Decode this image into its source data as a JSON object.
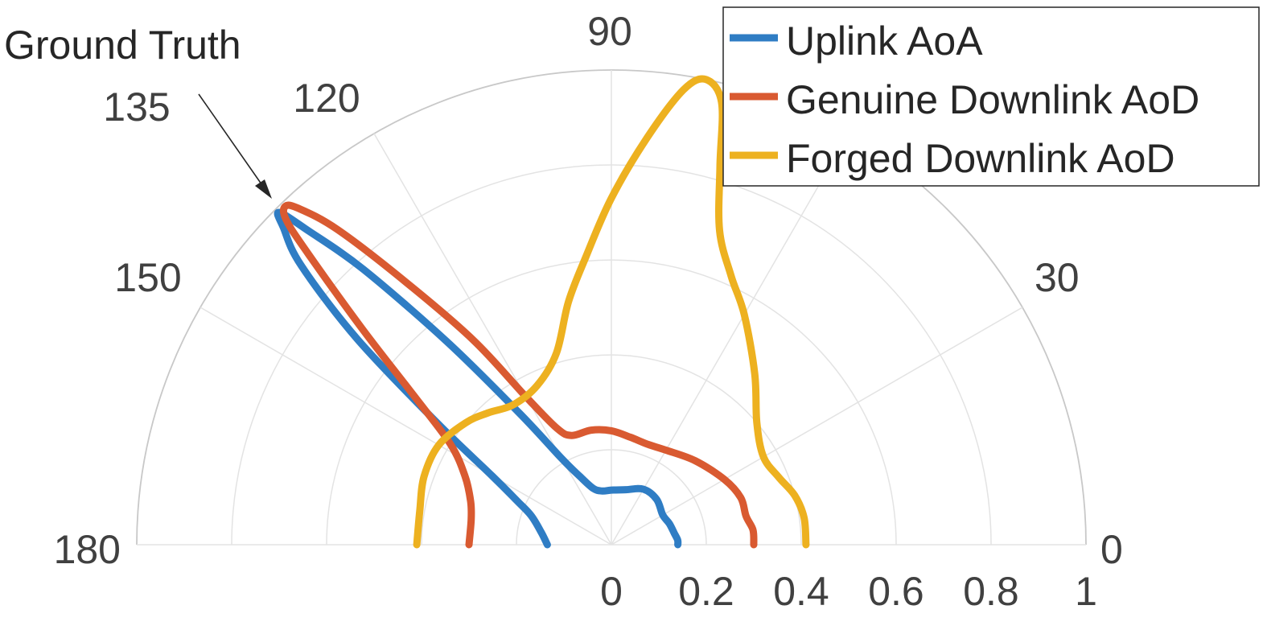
{
  "chart_data": {
    "type": "polar-line",
    "theta_range": [
      0,
      180
    ],
    "r_range": [
      0,
      1
    ],
    "angle_ticks": [
      "0",
      "30",
      "90",
      "120",
      "135",
      "150",
      "180"
    ],
    "radial_ticks": [
      "0",
      "0.2",
      "0.4",
      "0.6",
      "0.8",
      "1"
    ],
    "grid": true,
    "legend_position": "top-right",
    "annotation": {
      "text": "Ground Truth",
      "theta": 135,
      "r": 0.99
    },
    "series": [
      {
        "name": "Uplink AoA",
        "color": "#2f7dc4",
        "points": [
          [
            0,
            0.14
          ],
          [
            4,
            0.14
          ],
          [
            10,
            0.135
          ],
          [
            20,
            0.13
          ],
          [
            30,
            0.125
          ],
          [
            45,
            0.135
          ],
          [
            60,
            0.135
          ],
          [
            75,
            0.12
          ],
          [
            90,
            0.115
          ],
          [
            100,
            0.115
          ],
          [
            108,
            0.125
          ],
          [
            115,
            0.16
          ],
          [
            120,
            0.21
          ],
          [
            125,
            0.34
          ],
          [
            129,
            0.55
          ],
          [
            132,
            0.78
          ],
          [
            134,
            0.92
          ],
          [
            135,
            0.99
          ],
          [
            136,
            0.96
          ],
          [
            138,
            0.88
          ],
          [
            141,
            0.69
          ],
          [
            145,
            0.45
          ],
          [
            150,
            0.29
          ],
          [
            155,
            0.22
          ],
          [
            160,
            0.18
          ],
          [
            170,
            0.15
          ],
          [
            180,
            0.135
          ]
        ]
      },
      {
        "name": "Genuine Downlink AoD",
        "color": "#d95a31",
        "points": [
          [
            0,
            0.3
          ],
          [
            6,
            0.3
          ],
          [
            12,
            0.29
          ],
          [
            20,
            0.29
          ],
          [
            30,
            0.275
          ],
          [
            45,
            0.25
          ],
          [
            60,
            0.23
          ],
          [
            70,
            0.225
          ],
          [
            80,
            0.23
          ],
          [
            90,
            0.24
          ],
          [
            100,
            0.245
          ],
          [
            110,
            0.245
          ],
          [
            115,
            0.27
          ],
          [
            120,
            0.36
          ],
          [
            124,
            0.52
          ],
          [
            128,
            0.7
          ],
          [
            131,
            0.88
          ],
          [
            133,
            0.97
          ],
          [
            134,
            0.99
          ],
          [
            135,
            0.97
          ],
          [
            136,
            0.9
          ],
          [
            139,
            0.7
          ],
          [
            143,
            0.52
          ],
          [
            148,
            0.4
          ],
          [
            155,
            0.34
          ],
          [
            163,
            0.31
          ],
          [
            170,
            0.3
          ],
          [
            180,
            0.3
          ]
        ]
      },
      {
        "name": "Forged Downlink AoD",
        "color": "#edb120",
        "points": [
          [
            0,
            0.41
          ],
          [
            8,
            0.41
          ],
          [
            15,
            0.4
          ],
          [
            22,
            0.38
          ],
          [
            30,
            0.37
          ],
          [
            40,
            0.4
          ],
          [
            50,
            0.47
          ],
          [
            60,
            0.56
          ],
          [
            66,
            0.62
          ],
          [
            71,
            0.7
          ],
          [
            74,
            0.83
          ],
          [
            76,
            0.96
          ],
          [
            78.5,
            1.0
          ],
          [
            81,
            0.97
          ],
          [
            85,
            0.86
          ],
          [
            90,
            0.73
          ],
          [
            95,
            0.61
          ],
          [
            100,
            0.52
          ],
          [
            106,
            0.42
          ],
          [
            115,
            0.37
          ],
          [
            125,
            0.36
          ],
          [
            133,
            0.38
          ],
          [
            140,
            0.4
          ],
          [
            150,
            0.42
          ],
          [
            160,
            0.42
          ],
          [
            170,
            0.41
          ],
          [
            180,
            0.41
          ]
        ]
      }
    ]
  }
}
